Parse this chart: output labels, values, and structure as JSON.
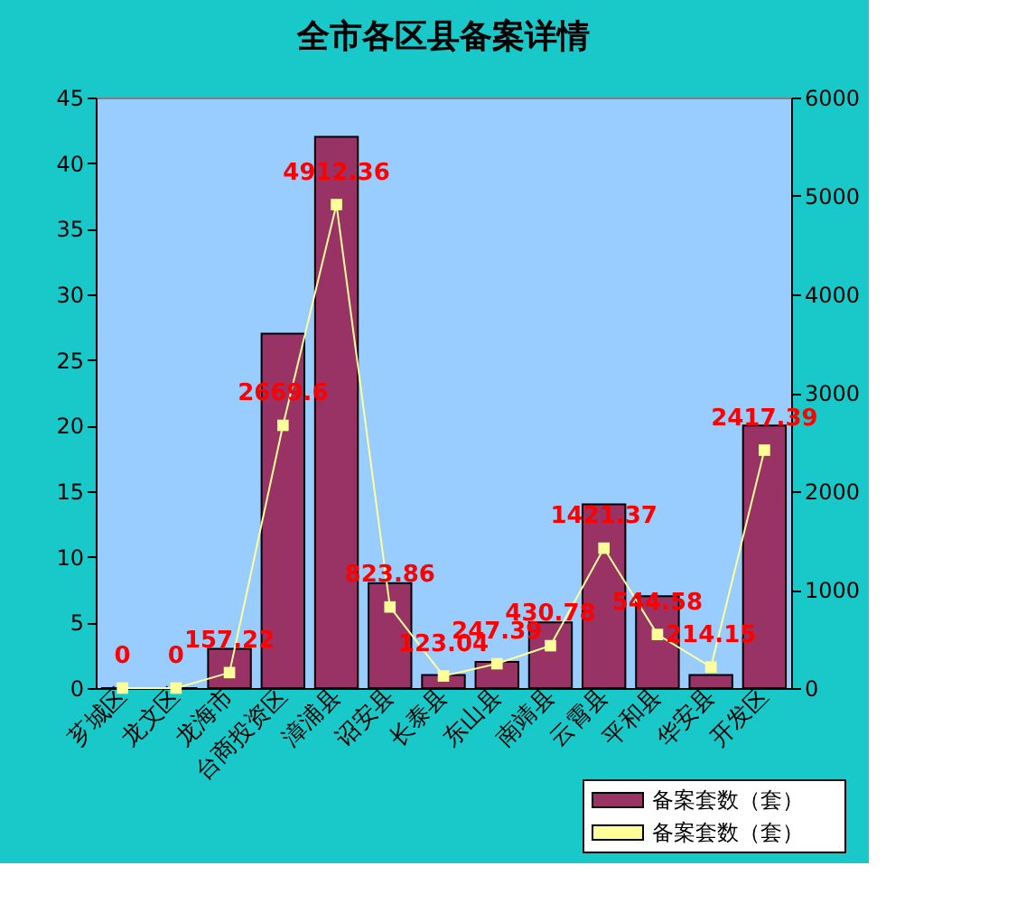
{
  "chart_data": {
    "type": "bar",
    "title": "全市各区县备案详情",
    "categories": [
      "芗城区",
      "龙文区",
      "龙海市",
      "台商投资区",
      "漳浦县",
      "诏安县",
      "长泰县",
      "东山县",
      "南靖县",
      "云霄县",
      "平和县",
      "华安县",
      "开发区"
    ],
    "series": [
      {
        "name": "备案套数（套）",
        "color": "#993366",
        "values": [
          0,
          0,
          3,
          27,
          42,
          8,
          1,
          2,
          5,
          14,
          7,
          1,
          20
        ]
      },
      {
        "name": "备案套数（套）",
        "type": "line",
        "axis": "y2",
        "color": "#ffff99",
        "marker": "square",
        "values": [
          0,
          0,
          157.22,
          2669.6,
          4912.36,
          823.86,
          123.04,
          247.39,
          430.78,
          1421.37,
          544.58,
          214.15,
          2417.39
        ],
        "value_labels": [
          "0",
          "0",
          "157.22",
          "2669.6",
          "4912.36",
          "823.86",
          "123.04",
          "247.39",
          "430.78",
          "1421.37",
          "544.58",
          "214.15",
          "2417.39"
        ]
      }
    ],
    "ylim": [
      0,
      45
    ],
    "yticks": [
      0,
      5,
      10,
      15,
      20,
      25,
      30,
      35,
      40,
      45
    ],
    "y2lim": [
      0,
      6000
    ],
    "y2ticks": [
      0,
      1000,
      2000,
      3000,
      4000,
      5000,
      6000
    ],
    "grid": false,
    "legend": "bottom right"
  }
}
